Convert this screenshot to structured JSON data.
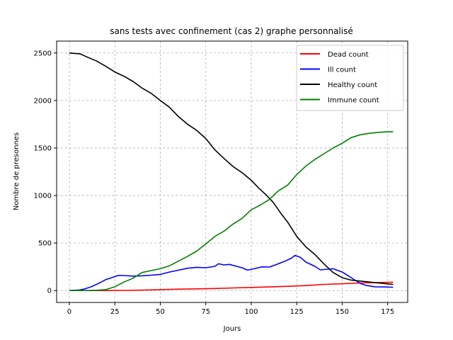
{
  "chart_data": {
    "type": "line",
    "title": "sans tests avec confinement (cas 2) graphe personnalisé",
    "xlabel": "Jours",
    "ylabel": "Nombre de presonnes",
    "xlim": [
      -7,
      186
    ],
    "ylim": [
      -125,
      2625
    ],
    "xticks": [
      0,
      25,
      50,
      75,
      100,
      125,
      150,
      175
    ],
    "yticks": [
      0,
      500,
      1000,
      1500,
      2000,
      2500
    ],
    "grid": true,
    "grid_style": "dashed",
    "legend_position": "top-right",
    "series": [
      {
        "name": "Dead count",
        "color": "#ff0000",
        "points": [
          [
            0,
            0
          ],
          [
            10,
            0
          ],
          [
            20,
            0
          ],
          [
            30,
            2
          ],
          [
            40,
            5
          ],
          [
            50,
            10
          ],
          [
            60,
            15
          ],
          [
            70,
            18
          ],
          [
            80,
            22
          ],
          [
            90,
            28
          ],
          [
            100,
            33
          ],
          [
            110,
            38
          ],
          [
            120,
            45
          ],
          [
            130,
            52
          ],
          [
            140,
            65
          ],
          [
            150,
            72
          ],
          [
            160,
            80
          ],
          [
            170,
            85
          ],
          [
            178,
            88
          ]
        ]
      },
      {
        "name": "Ill count",
        "color": "#0000ff",
        "points": [
          [
            0,
            0
          ],
          [
            5,
            5
          ],
          [
            8,
            15
          ],
          [
            12,
            40
          ],
          [
            16,
            75
          ],
          [
            20,
            115
          ],
          [
            24,
            140
          ],
          [
            27,
            160
          ],
          [
            30,
            158
          ],
          [
            35,
            152
          ],
          [
            40,
            155
          ],
          [
            45,
            162
          ],
          [
            50,
            170
          ],
          [
            55,
            195
          ],
          [
            60,
            215
          ],
          [
            65,
            235
          ],
          [
            70,
            245
          ],
          [
            75,
            240
          ],
          [
            80,
            255
          ],
          [
            82,
            282
          ],
          [
            85,
            270
          ],
          [
            88,
            275
          ],
          [
            92,
            255
          ],
          [
            95,
            240
          ],
          [
            98,
            215
          ],
          [
            102,
            232
          ],
          [
            106,
            250
          ],
          [
            110,
            248
          ],
          [
            114,
            275
          ],
          [
            118,
            305
          ],
          [
            122,
            340
          ],
          [
            124,
            370
          ],
          [
            127,
            350
          ],
          [
            130,
            300
          ],
          [
            135,
            255
          ],
          [
            138,
            218
          ],
          [
            142,
            225
          ],
          [
            145,
            230
          ],
          [
            150,
            195
          ],
          [
            153,
            160
          ],
          [
            157,
            110
          ],
          [
            160,
            75
          ],
          [
            163,
            55
          ],
          [
            168,
            40
          ],
          [
            173,
            38
          ],
          [
            178,
            35
          ]
        ]
      },
      {
        "name": "Healthy count",
        "color": "#000000",
        "points": [
          [
            0,
            2500
          ],
          [
            6,
            2490
          ],
          [
            10,
            2455
          ],
          [
            15,
            2415
          ],
          [
            20,
            2360
          ],
          [
            25,
            2300
          ],
          [
            30,
            2255
          ],
          [
            35,
            2200
          ],
          [
            40,
            2130
          ],
          [
            45,
            2075
          ],
          [
            50,
            2000
          ],
          [
            55,
            1930
          ],
          [
            60,
            1830
          ],
          [
            65,
            1750
          ],
          [
            70,
            1685
          ],
          [
            75,
            1600
          ],
          [
            80,
            1480
          ],
          [
            85,
            1390
          ],
          [
            90,
            1305
          ],
          [
            95,
            1240
          ],
          [
            100,
            1160
          ],
          [
            104,
            1080
          ],
          [
            108,
            1010
          ],
          [
            112,
            930
          ],
          [
            116,
            820
          ],
          [
            120,
            720
          ],
          [
            125,
            570
          ],
          [
            130,
            460
          ],
          [
            135,
            380
          ],
          [
            140,
            280
          ],
          [
            145,
            190
          ],
          [
            150,
            135
          ],
          [
            155,
            110
          ],
          [
            160,
            100
          ],
          [
            165,
            90
          ],
          [
            170,
            80
          ],
          [
            175,
            70
          ],
          [
            178,
            65
          ]
        ]
      },
      {
        "name": "Immune count",
        "color": "#008000",
        "points": [
          [
            0,
            0
          ],
          [
            10,
            0
          ],
          [
            15,
            3
          ],
          [
            20,
            10
          ],
          [
            25,
            40
          ],
          [
            30,
            90
          ],
          [
            35,
            130
          ],
          [
            40,
            190
          ],
          [
            45,
            210
          ],
          [
            50,
            230
          ],
          [
            55,
            260
          ],
          [
            60,
            310
          ],
          [
            65,
            360
          ],
          [
            70,
            415
          ],
          [
            75,
            490
          ],
          [
            80,
            570
          ],
          [
            85,
            625
          ],
          [
            90,
            700
          ],
          [
            95,
            760
          ],
          [
            100,
            850
          ],
          [
            105,
            900
          ],
          [
            110,
            960
          ],
          [
            115,
            1050
          ],
          [
            120,
            1110
          ],
          [
            125,
            1220
          ],
          [
            130,
            1310
          ],
          [
            135,
            1380
          ],
          [
            140,
            1440
          ],
          [
            145,
            1500
          ],
          [
            150,
            1550
          ],
          [
            155,
            1610
          ],
          [
            160,
            1640
          ],
          [
            165,
            1655
          ],
          [
            170,
            1665
          ],
          [
            175,
            1670
          ],
          [
            178,
            1672
          ]
        ]
      }
    ]
  }
}
